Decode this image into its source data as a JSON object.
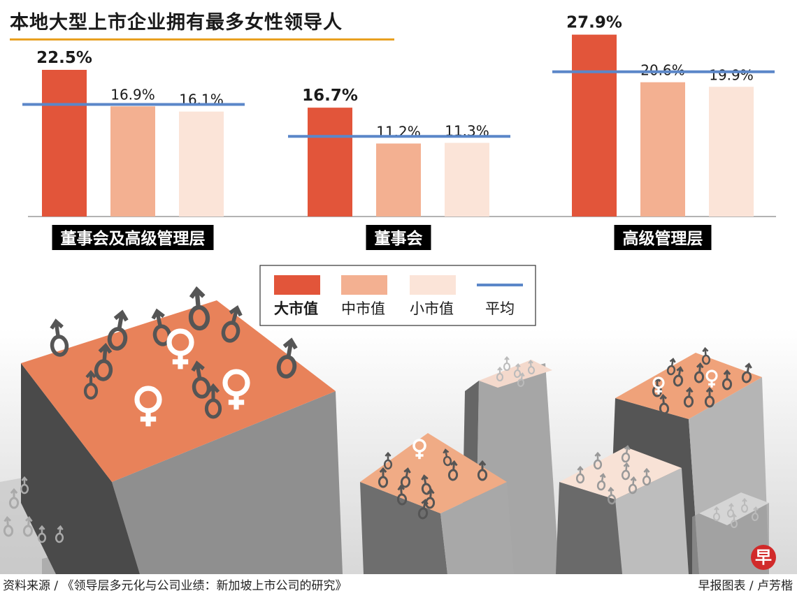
{
  "logo_char": "早",
  "source": "资料来源 / 《领导层多元化与公司业绩：新加坡上市公司的研究》",
  "credit": "早报图表 / 卢芳楷",
  "chart_data": {
    "type": "bar",
    "title": "本地大型上市企业拥有最多女性领导人",
    "categories": [
      "董事会及高级管理层",
      "董事会",
      "高级管理层"
    ],
    "series": [
      {
        "name": "大市值",
        "values": [
          22.5,
          16.7,
          27.9
        ],
        "labels": [
          "22.5%",
          "16.7%",
          "27.9%"
        ],
        "color": "#e2553a"
      },
      {
        "name": "中市值",
        "values": [
          16.9,
          11.2,
          20.6
        ],
        "labels": [
          "16.9%",
          "11.2%",
          "20.6%"
        ],
        "color": "#f3b091"
      },
      {
        "name": "小市值",
        "values": [
          16.1,
          11.3,
          19.9
        ],
        "labels": [
          "16.1%",
          "11.3%",
          "19.9%"
        ],
        "color": "#fbe4d8"
      }
    ],
    "average": {
      "name": "平均",
      "values": [
        17.2,
        12.3,
        22.2
      ],
      "color": "#5b87c9"
    },
    "ylim": [
      0,
      30
    ],
    "legend_position": "center",
    "grid": false
  }
}
